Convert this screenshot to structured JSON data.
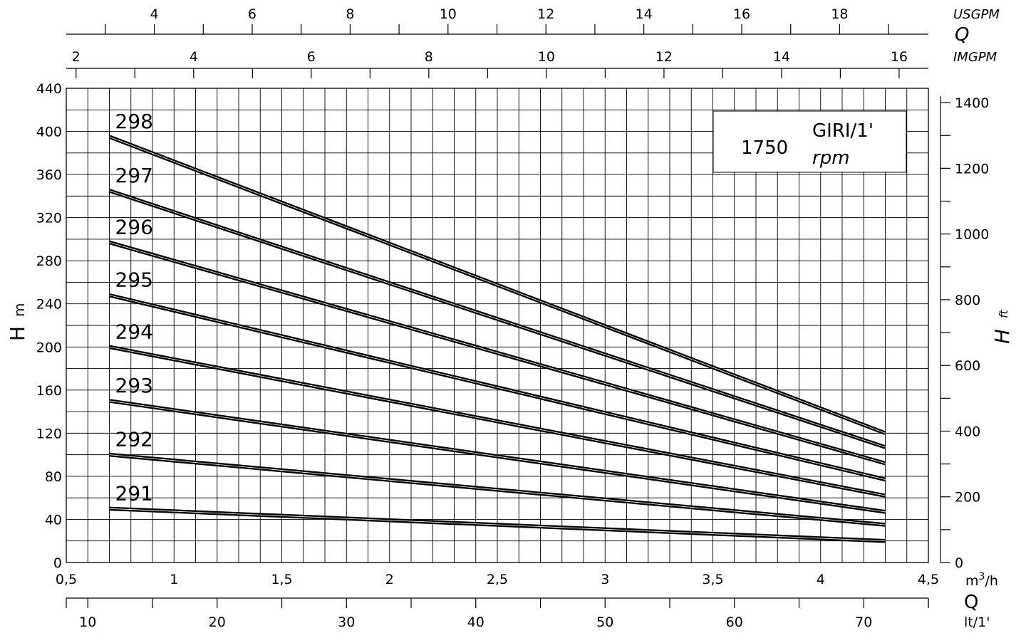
{
  "chart_data": {
    "type": "line",
    "title": "",
    "speed": {
      "value": "1750",
      "unit_top": "GIRI/1'",
      "unit_bottom": "rpm"
    },
    "xlabel": {
      "symbol": "Q",
      "unit_base": "m",
      "unit_sup": "3",
      "unit_tail": "/h"
    },
    "ylabel": {
      "symbol": "H",
      "unit": "m"
    },
    "y2label": {
      "symbol": "H",
      "unit": "ft"
    },
    "xlim": [
      0.5,
      4.5
    ],
    "ylim": [
      0,
      440
    ],
    "x_ticks": [
      "0,5",
      "1",
      "1,5",
      "2",
      "2,5",
      "3",
      "3,5",
      "4",
      "4,5"
    ],
    "x_tick_values": [
      0.5,
      1,
      1.5,
      2,
      2.5,
      3,
      3.5,
      4,
      4.5
    ],
    "y_ticks": [
      0,
      40,
      80,
      120,
      160,
      200,
      240,
      280,
      320,
      360,
      400,
      440
    ],
    "y_ft_ticks": [
      0,
      200,
      400,
      600,
      800,
      1000,
      1200,
      1400
    ],
    "lt_axis": {
      "symbol": "Q",
      "unit": "lt/1'",
      "ticks": [
        10,
        20,
        30,
        40,
        50,
        60,
        70
      ]
    },
    "usgpm_axis": {
      "unit": "USGPM",
      "symbol": "Q",
      "ticks": [
        4,
        6,
        8,
        10,
        12,
        14,
        16,
        18
      ]
    },
    "imgpm_axis": {
      "unit": "IMGPM",
      "ticks": [
        2,
        4,
        6,
        8,
        10,
        12,
        14,
        16
      ]
    },
    "grid": true,
    "series": [
      {
        "name": "291",
        "x": [
          0.7,
          4.3
        ],
        "y": [
          50,
          20
        ]
      },
      {
        "name": "292",
        "x": [
          0.7,
          4.3
        ],
        "y": [
          100,
          35
        ]
      },
      {
        "name": "293",
        "x": [
          0.7,
          4.3
        ],
        "y": [
          150,
          47
        ]
      },
      {
        "name": "294",
        "x": [
          0.7,
          4.3
        ],
        "y": [
          200,
          62
        ]
      },
      {
        "name": "295",
        "x": [
          0.7,
          4.3
        ],
        "y": [
          248,
          77
        ]
      },
      {
        "name": "296",
        "x": [
          0.7,
          4.3
        ],
        "y": [
          297,
          92
        ]
      },
      {
        "name": "297",
        "x": [
          0.7,
          4.3
        ],
        "y": [
          345,
          107
        ]
      },
      {
        "name": "298",
        "x": [
          0.7,
          4.3
        ],
        "y": [
          395,
          120
        ]
      }
    ]
  }
}
